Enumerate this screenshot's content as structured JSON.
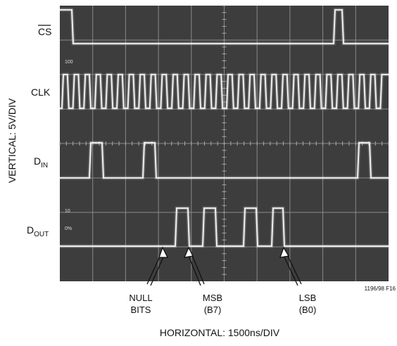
{
  "signals": [
    {
      "name": "CS"
    },
    {
      "name": "CLK"
    },
    {
      "name": "D",
      "sub": "IN"
    },
    {
      "name": "D",
      "sub": "OUT"
    }
  ],
  "vertical_label": "VERTICAL: 5V/DIV",
  "horizontal_label": "HORIZONTAL: 1500ns/DIV",
  "scope_marks": [
    "100",
    "10",
    "0%"
  ],
  "annotations": [
    {
      "line1": "NULL",
      "line2": "BITS"
    },
    {
      "line1": "MSB",
      "line2": "(B7)"
    },
    {
      "line1": "LSB",
      "line2": "(B0)"
    }
  ],
  "figure_id": "1196/98 F16"
}
